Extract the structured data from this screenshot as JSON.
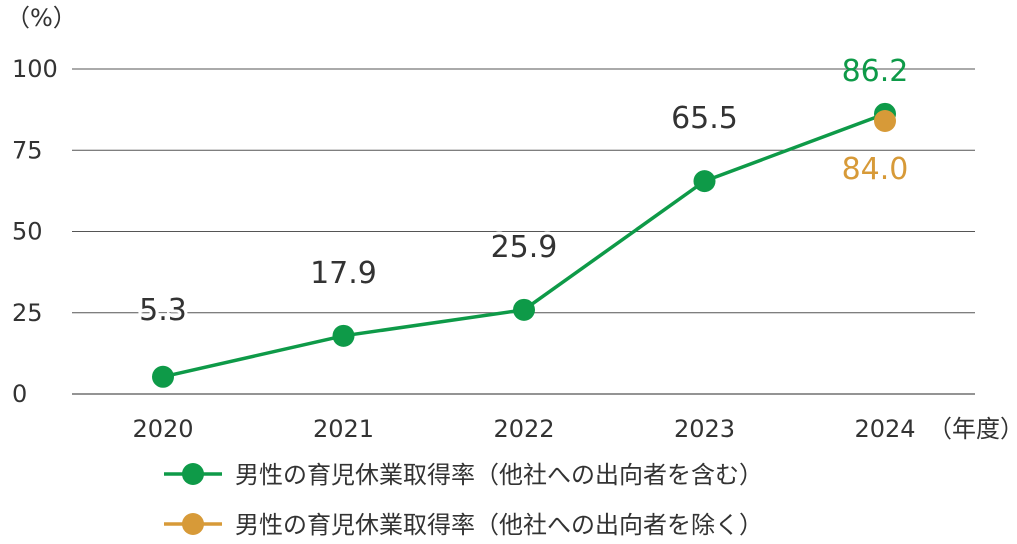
{
  "chart_data": {
    "type": "line",
    "y_unit": "（%）",
    "x_unit": "（年度）",
    "categories": [
      "2020",
      "2021",
      "2022",
      "2023",
      "2024"
    ],
    "yticks": [
      0,
      25,
      50,
      75,
      100
    ],
    "ylim": [
      0,
      100
    ],
    "grid": true,
    "legend_position": "bottom",
    "series": [
      {
        "name": "男性の育児休業取得率（他社への出向者を含む）",
        "color": "#0e9a48",
        "values": [
          5.3,
          17.9,
          25.9,
          65.5,
          86.2
        ],
        "labels": [
          "5.3",
          "17.9",
          "25.9",
          "65.5",
          "86.2"
        ]
      },
      {
        "name": "男性の育児休業取得率（他社への出向者を除く）",
        "color": "#d79a38",
        "values": [
          null,
          null,
          null,
          null,
          84.0
        ],
        "labels": [
          "",
          "",
          "",
          "",
          "84.0"
        ]
      }
    ]
  }
}
